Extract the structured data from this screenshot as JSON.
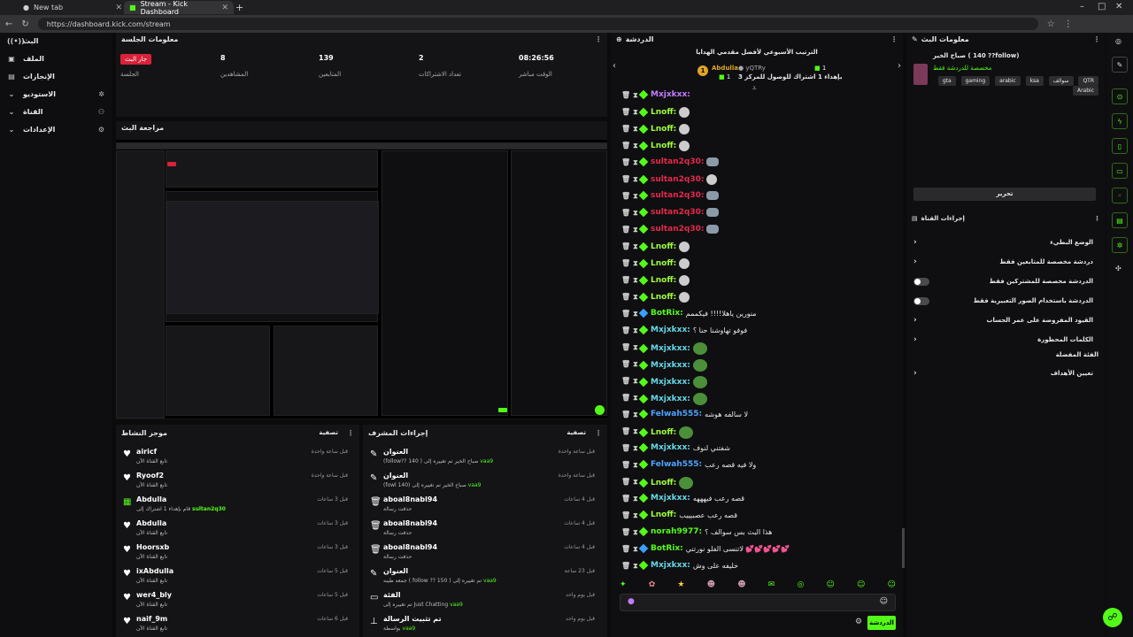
{
  "browser": {
    "tabs": [
      {
        "label": "New tab",
        "active": false
      },
      {
        "label": "Stream - Kick Dashboard",
        "active": true
      }
    ],
    "url": "https://dashboard.kick.com/stream"
  },
  "nav": {
    "items": [
      {
        "label": "البث",
        "icon": "broadcast-icon"
      },
      {
        "label": "الملف",
        "icon": "file-icon"
      },
      {
        "label": "الإنجازات",
        "icon": "trophy-icon"
      },
      {
        "label": "الاستوديو",
        "icon": "chevron-down-icon"
      },
      {
        "label": "القناة",
        "icon": "chevron-down-icon"
      },
      {
        "label": "الإعدادات",
        "icon": "chevron-down-icon"
      }
    ]
  },
  "session": {
    "title": "معلومات الجلسة",
    "stats": [
      {
        "value": "جار البث",
        "label": "الجلسة"
      },
      {
        "value": "8",
        "label": "المشاهدين"
      },
      {
        "value": "139",
        "label": "المتابعين"
      },
      {
        "value": "2",
        "label": "تعداد الاشتراكات"
      },
      {
        "value": "08:26:56",
        "label": "الوقت مباشر"
      }
    ]
  },
  "preview": {
    "title": "مراجعة البث"
  },
  "activity": {
    "title": "موجز النشاط",
    "filter_label": "تصفية",
    "rows": [
      {
        "icon": "heart-icon",
        "name": "airicf",
        "sub": "تابع القناة الآن",
        "time": "قبل ساعة واحدة"
      },
      {
        "icon": "heart-icon",
        "name": "Ryoof2",
        "sub": "تابع القناة الآن",
        "time": "قبل ساعة واحدة"
      },
      {
        "icon": "gift-icon",
        "name": "Abdulla",
        "sub": "قام بإهداء 1 اشتراك إلى",
        "highlight": "sultan2q30",
        "time": "قبل 3 ساعات"
      },
      {
        "icon": "heart-icon",
        "name": "Abdulla",
        "sub": "تابع القناة الآن",
        "time": "قبل 3 ساعات"
      },
      {
        "icon": "heart-icon",
        "name": "Hoorsxb",
        "sub": "تابع القناة الآن",
        "time": "قبل 3 ساعات"
      },
      {
        "icon": "heart-icon",
        "name": "ixAbdulla",
        "sub": "تابع القناة الآن",
        "time": "قبل 5 ساعات"
      },
      {
        "icon": "heart-icon",
        "name": "wer4_bly",
        "sub": "تابع القناة الآن",
        "time": "قبل 5 ساعات"
      },
      {
        "icon": "heart-icon",
        "name": "naif_9m",
        "sub": "تابع القناة الآن",
        "time": "قبل 6 ساعات"
      }
    ]
  },
  "modlog": {
    "title": "إجراءات المشرف",
    "filter_label": "تصفية",
    "rows": [
      {
        "icon": "edit-icon",
        "name": "العنوان",
        "sub": "(follow?? 140 ) صباح الخير تم تغييره إلى",
        "highlight": "vaa9",
        "time": "قبل ساعة واحدة"
      },
      {
        "icon": "edit-icon",
        "name": "العنوان",
        "sub": "(fowl 140) صباح الخير تم تغييره إلى",
        "highlight": "vaa9",
        "time": "قبل ساعة واحدة"
      },
      {
        "icon": "trash-icon",
        "name": "aboal8nabl94",
        "sub": "حذفت رسالة",
        "time": "قبل 4 ساعات"
      },
      {
        "icon": "trash-icon",
        "name": "aboal8nabl94",
        "sub": "حذفت رسالة",
        "time": "قبل 4 ساعات"
      },
      {
        "icon": "trash-icon",
        "name": "aboal8nabl94",
        "sub": "حذفت رسالة",
        "time": "قبل 4 ساعات"
      },
      {
        "icon": "edit-icon",
        "name": "العنوان",
        "sub": "جمعه طيبه ( follow ?? 150 ) تم تغييره إلى",
        "highlight": "vaa9",
        "time": "قبل 23 ساعة"
      },
      {
        "icon": "category-icon",
        "name": "الفئة",
        "sub": "تم تغييره إلى Just Chatting",
        "highlight": "vaa9",
        "time": "قبل يوم واحد"
      },
      {
        "icon": "pin-icon",
        "name": "تم تثبيت الرسالة",
        "sub": "بواسطة",
        "highlight": "vaa9",
        "time": "قبل يوم واحد"
      }
    ]
  },
  "chat": {
    "title": "الدردشة",
    "leaderboard_title": "الترتيب الأسبوعي لأفضل مقدمي الهدايا",
    "leaders": [
      {
        "name": "Abdulla",
        "count": "1"
      },
      {
        "name": "yQTRy",
        "count": "1"
      }
    ],
    "leader_note": "بإهداء 1 اشتراك للوصول للمركز 3",
    "messages": [
      {
        "user": "Mxjxkxx",
        "color": "#c37cff",
        "text": "",
        "emote": "none",
        "bot": false
      },
      {
        "user": "Lnoff",
        "color": "#a0ff3c",
        "text": "",
        "emote": "bird",
        "bot": false
      },
      {
        "user": "Lnoff",
        "color": "#a0ff3c",
        "text": "",
        "emote": "bird",
        "bot": false
      },
      {
        "user": "Lnoff",
        "color": "#a0ff3c",
        "text": "",
        "emote": "bird",
        "bot": false
      },
      {
        "user": "sultan2q30",
        "color": "#e6294a",
        "text": "",
        "emote": "shark",
        "bot": false
      },
      {
        "user": "sultan2q30",
        "color": "#e6294a",
        "text": "",
        "emote": "bird",
        "bot": false
      },
      {
        "user": "sultan2q30",
        "color": "#e6294a",
        "text": "",
        "emote": "shark",
        "bot": false
      },
      {
        "user": "sultan2q30",
        "color": "#e6294a",
        "text": "",
        "emote": "shark",
        "bot": false
      },
      {
        "user": "sultan2q30",
        "color": "#e6294a",
        "text": "",
        "emote": "shark",
        "bot": false
      },
      {
        "user": "Lnoff",
        "color": "#a0ff3c",
        "text": "",
        "emote": "bird",
        "bot": false
      },
      {
        "user": "Lnoff",
        "color": "#a0ff3c",
        "text": "",
        "emote": "bird",
        "bot": false
      },
      {
        "user": "Lnoff",
        "color": "#a0ff3c",
        "text": "",
        "emote": "bird",
        "bot": false
      },
      {
        "user": "Lnoff",
        "color": "#a0ff3c",
        "text": "",
        "emote": "bird",
        "bot": false
      },
      {
        "user": "BotRix",
        "color": "#53fc18",
        "text": "منورين ياهلا!!!! فيكممم",
        "emote": "none",
        "bot": true
      },
      {
        "user": "Mxjxkxx",
        "color": "#66d9e8",
        "text": "فوفو تهاوشنا حنا ؟",
        "emote": "none",
        "bot": false
      },
      {
        "user": "Mxjxkxx",
        "color": "#66d9e8",
        "text": "",
        "emote": "pepe",
        "bot": false
      },
      {
        "user": "Mxjxkxx",
        "color": "#66d9e8",
        "text": "",
        "emote": "pepe",
        "bot": false
      },
      {
        "user": "Mxjxkxx",
        "color": "#66d9e8",
        "text": "",
        "emote": "pepe",
        "bot": false
      },
      {
        "user": "Mxjxkxx",
        "color": "#66d9e8",
        "text": "",
        "emote": "pepe",
        "bot": false
      },
      {
        "user": "Felwah555",
        "color": "#4fa3ff",
        "text": "لا سالفه هوشه",
        "emote": "none",
        "bot": false
      },
      {
        "user": "Lnoff",
        "color": "#a0ff3c",
        "text": "",
        "emote": "pepe",
        "bot": false
      },
      {
        "user": "Mxjxkxx",
        "color": "#66d9e8",
        "text": "شفتني لنوف",
        "emote": "none",
        "bot": false
      },
      {
        "user": "Felwah555",
        "color": "#4fa3ff",
        "text": "ولا فيه قصه رعب",
        "emote": "none",
        "bot": false
      },
      {
        "user": "Lnoff",
        "color": "#a0ff3c",
        "text": "",
        "emote": "pepe",
        "bot": false
      },
      {
        "user": "Mxjxkxx",
        "color": "#66d9e8",
        "text": "قصه رعب فيهههه",
        "emote": "none",
        "bot": false
      },
      {
        "user": "Lnoff",
        "color": "#a0ff3c",
        "text": "قصه رعب عصبيييب",
        "emote": "none",
        "bot": false
      },
      {
        "user": "norah9977",
        "color": "#53fc18",
        "text": "هذا البث بس سوالف ؟",
        "emote": "none",
        "bot": false
      },
      {
        "user": "BotRix",
        "color": "#53fc18",
        "text": "لاتنسى الفلو نورتني 💕💕💕💕💕",
        "emote": "none",
        "bot": true
      },
      {
        "user": "Mxjxkxx",
        "color": "#66d9e8",
        "text": "خليفه على وش",
        "emote": "none",
        "bot": false
      }
    ],
    "send_label": "الدردشة",
    "input_placeholder": ""
  },
  "stream_info": {
    "title": "معلومات البث",
    "stream_title": "صباح الخير ( 140 ??follow)",
    "subtitle": "مخصصة للدردشة فقط",
    "tags": [
      "QTR",
      "سوالف",
      "ksa",
      "arabic",
      "gaming",
      "gta",
      "Arabic"
    ],
    "edit_button": "تحرير"
  },
  "channel_actions": {
    "title": "إجراءات القناة",
    "items": [
      {
        "label": "الوضع البطيء",
        "control": "chevron"
      },
      {
        "label": "دردشة مخصصة للمتابعين فقط",
        "control": "chevron"
      },
      {
        "label": "الدردشة مخصصة للمشتركين فقط",
        "control": "toggle"
      },
      {
        "label": "الدردشة باستخدام الصور التعبيرية فقط",
        "control": "toggle"
      },
      {
        "label": "القيود المفروضة على عمر الحساب",
        "control": "chevron"
      },
      {
        "label": "الكلمات المحظورة",
        "control": "chevron"
      }
    ],
    "section_label": "الفئة المفضلة",
    "goal_label": "تعيين الأهداف"
  },
  "colors": {
    "accent": "#53fc18",
    "live": "#d9223a",
    "bg": "#0b0b0c",
    "panel": "#141416"
  }
}
